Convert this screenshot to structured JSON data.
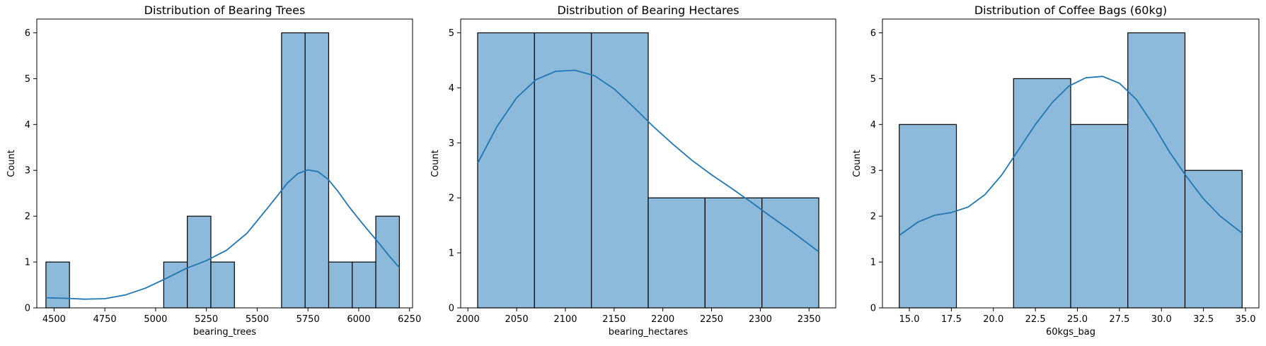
{
  "chart_data": [
    {
      "type": "histogram",
      "title": "Distribution of Bearing Trees",
      "xlabel": "bearing_trees",
      "ylabel": "Count",
      "xlim": [
        4415,
        6265
      ],
      "ylim": [
        0,
        6.3
      ],
      "xticks": [
        4500,
        4750,
        5000,
        5250,
        5500,
        5750,
        6000,
        6250
      ],
      "xtick_labels": [
        "4500",
        "4750",
        "5000",
        "5250",
        "5500",
        "5750",
        "6000",
        "6250"
      ],
      "yticks": [
        0,
        1,
        2,
        3,
        4,
        5,
        6
      ],
      "ytick_labels": [
        "0",
        "1",
        "2",
        "3",
        "4",
        "5",
        "6"
      ],
      "bins": [
        {
          "x0": 4460,
          "x1": 4576,
          "count": 1
        },
        {
          "x0": 5040,
          "x1": 5156,
          "count": 1
        },
        {
          "x0": 5156,
          "x1": 5272,
          "count": 2
        },
        {
          "x0": 5272,
          "x1": 5388,
          "count": 1
        },
        {
          "x0": 5620,
          "x1": 5736,
          "count": 6
        },
        {
          "x0": 5736,
          "x1": 5852,
          "count": 6
        },
        {
          "x0": 5852,
          "x1": 5968,
          "count": 1
        },
        {
          "x0": 5968,
          "x1": 6084,
          "count": 1
        },
        {
          "x0": 6084,
          "x1": 6200,
          "count": 2
        }
      ],
      "kde": {
        "x": [
          4460,
          4550,
          4650,
          4750,
          4850,
          4950,
          5050,
          5150,
          5250,
          5350,
          5450,
          5550,
          5650,
          5700,
          5750,
          5800,
          5850,
          5900,
          5950,
          6000,
          6050,
          6100,
          6150,
          6200
        ],
        "y": [
          0.22,
          0.21,
          0.19,
          0.2,
          0.28,
          0.43,
          0.64,
          0.86,
          1.03,
          1.26,
          1.63,
          2.17,
          2.73,
          2.93,
          3.01,
          2.97,
          2.8,
          2.53,
          2.22,
          1.94,
          1.67,
          1.41,
          1.13,
          0.88
        ]
      }
    },
    {
      "type": "histogram",
      "title": "Distribution of Bearing Hectares",
      "xlabel": "bearing_hectares",
      "ylabel": "Count",
      "xlim": [
        1992.6,
        2377.4
      ],
      "ylim": [
        0,
        5.25
      ],
      "xticks": [
        2000,
        2050,
        2100,
        2150,
        2200,
        2250,
        2300,
        2350
      ],
      "xtick_labels": [
        "2000",
        "2050",
        "2100",
        "2150",
        "2200",
        "2250",
        "2300",
        "2350"
      ],
      "yticks": [
        0,
        1,
        2,
        3,
        4,
        5
      ],
      "ytick_labels": [
        "0",
        "1",
        "2",
        "3",
        "4",
        "5"
      ],
      "bins": [
        {
          "x0": 2010,
          "x1": 2068.3,
          "count": 5
        },
        {
          "x0": 2068.3,
          "x1": 2126.7,
          "count": 5
        },
        {
          "x0": 2126.7,
          "x1": 2185,
          "count": 5
        },
        {
          "x0": 2185,
          "x1": 2243.3,
          "count": 2
        },
        {
          "x0": 2243.3,
          "x1": 2301.7,
          "count": 2
        },
        {
          "x0": 2301.7,
          "x1": 2360,
          "count": 2
        }
      ],
      "kde": {
        "x": [
          2010,
          2030,
          2050,
          2070,
          2090,
          2110,
          2130,
          2150,
          2170,
          2190,
          2210,
          2230,
          2250,
          2270,
          2290,
          2310,
          2330,
          2360
        ],
        "y": [
          2.63,
          3.3,
          3.82,
          4.15,
          4.3,
          4.32,
          4.22,
          3.98,
          3.65,
          3.3,
          2.98,
          2.68,
          2.42,
          2.18,
          1.93,
          1.67,
          1.42,
          1.02
        ]
      }
    },
    {
      "type": "histogram",
      "title": "Distribution of Coffee Bags (60kg)",
      "xlabel": "60kgs_bag",
      "ylabel": "Count",
      "xlim": [
        13.4,
        35.8
      ],
      "ylim": [
        0,
        6.3
      ],
      "xticks": [
        15,
        17.5,
        20,
        22.5,
        25,
        27.5,
        30,
        32.5,
        35
      ],
      "xtick_labels": [
        "15.0",
        "17.5",
        "20.0",
        "22.5",
        "25.0",
        "27.5",
        "30.0",
        "32.5",
        "35.0"
      ],
      "yticks": [
        0,
        1,
        2,
        3,
        4,
        5,
        6
      ],
      "ytick_labels": [
        "0",
        "1",
        "2",
        "3",
        "4",
        "5",
        "6"
      ],
      "bins": [
        {
          "x0": 14.4,
          "x1": 17.8,
          "count": 4
        },
        {
          "x0": 17.8,
          "x1": 21.2,
          "count": 0
        },
        {
          "x0": 21.2,
          "x1": 24.6,
          "count": 5
        },
        {
          "x0": 24.6,
          "x1": 28.0,
          "count": 4
        },
        {
          "x0": 28.0,
          "x1": 31.4,
          "count": 6
        },
        {
          "x0": 31.4,
          "x1": 34.8,
          "count": 3
        }
      ],
      "kde": {
        "x": [
          14.4,
          15.5,
          16.5,
          17.5,
          18.5,
          19.5,
          20.5,
          21.5,
          22.5,
          23.5,
          24.5,
          25.5,
          26.5,
          27.5,
          28.5,
          29.5,
          30.5,
          31.5,
          32.5,
          33.5,
          34.8
        ],
        "y": [
          1.58,
          1.87,
          2.02,
          2.08,
          2.2,
          2.47,
          2.9,
          3.45,
          4.0,
          4.48,
          4.84,
          5.02,
          5.05,
          4.9,
          4.55,
          4.0,
          3.39,
          2.86,
          2.38,
          2.0,
          1.63
        ]
      }
    }
  ]
}
